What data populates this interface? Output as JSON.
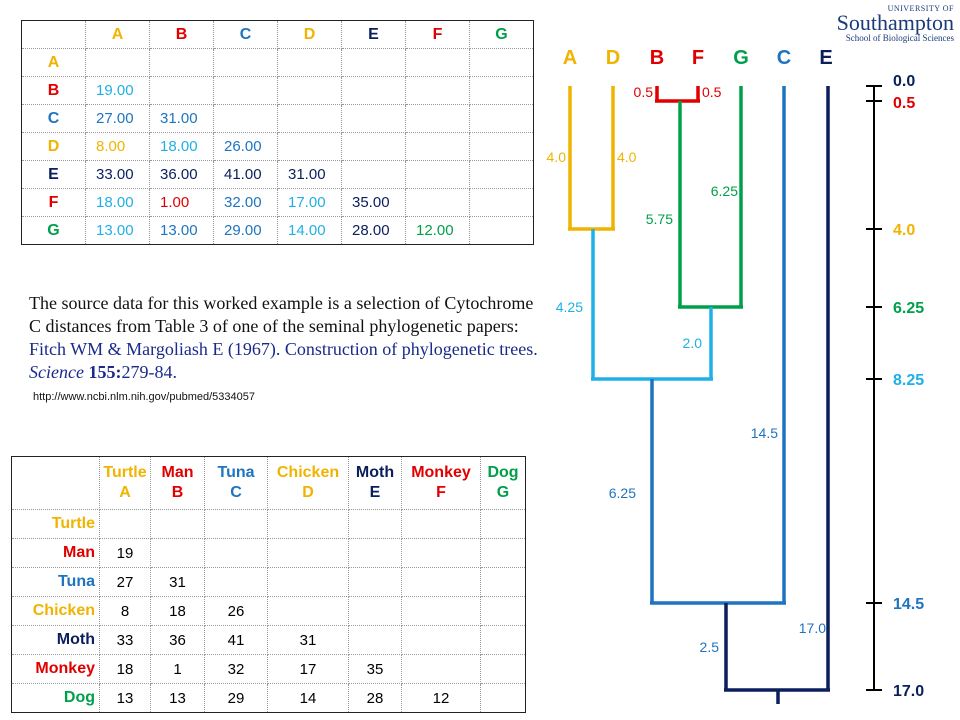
{
  "colors": {
    "A": "#f0b400",
    "B": "#e00000",
    "C": "#1e74c0",
    "D": "#f0b400",
    "E": "#0a1f5c",
    "F": "#e00000",
    "G": "#00a04a",
    "AD_branch": "#1fb0e8",
    "ADBFG_branch": "#1e74c0",
    "root_branch": "#0a1f5c"
  },
  "logo": {
    "line1": "UNIVERSITY OF",
    "line2": "Southampton",
    "line3": "School of Biological Sciences"
  },
  "matrix_letters": {
    "headers": [
      "A",
      "B",
      "C",
      "D",
      "E",
      "F",
      "G"
    ],
    "rows": [
      {
        "label": "A",
        "cells": []
      },
      {
        "label": "B",
        "cells": [
          "19.00"
        ]
      },
      {
        "label": "C",
        "cells": [
          "27.00",
          "31.00"
        ]
      },
      {
        "label": "D",
        "cells": [
          "8.00",
          "18.00",
          "26.00"
        ]
      },
      {
        "label": "E",
        "cells": [
          "33.00",
          "36.00",
          "41.00",
          "31.00"
        ]
      },
      {
        "label": "F",
        "cells": [
          "18.00",
          "1.00",
          "32.00",
          "17.00",
          "35.00"
        ]
      },
      {
        "label": "G",
        "cells": [
          "13.00",
          "13.00",
          "29.00",
          "14.00",
          "28.00",
          "12.00"
        ]
      }
    ]
  },
  "matrix_names": {
    "headers": [
      {
        "name": "Turtle",
        "letter": "A"
      },
      {
        "name": "Man",
        "letter": "B"
      },
      {
        "name": "Tuna",
        "letter": "C"
      },
      {
        "name": "Chicken",
        "letter": "D"
      },
      {
        "name": "Moth",
        "letter": "E"
      },
      {
        "name": "Monkey",
        "letter": "F"
      },
      {
        "name": "Dog",
        "letter": "G"
      }
    ],
    "rows": [
      {
        "label": "Turtle",
        "key": "A",
        "cells": []
      },
      {
        "label": "Man",
        "key": "B",
        "cells": [
          "19"
        ]
      },
      {
        "label": "Tuna",
        "key": "C",
        "cells": [
          "27",
          "31"
        ]
      },
      {
        "label": "Chicken",
        "key": "D",
        "cells": [
          "8",
          "18",
          "26"
        ]
      },
      {
        "label": "Moth",
        "key": "E",
        "cells": [
          "33",
          "36",
          "41",
          "31"
        ]
      },
      {
        "label": "Monkey",
        "key": "F",
        "cells": [
          "18",
          "1",
          "32",
          "17",
          "35"
        ]
      },
      {
        "label": "Dog",
        "key": "G",
        "cells": [
          "13",
          "13",
          "29",
          "14",
          "28",
          "12"
        ]
      }
    ]
  },
  "description": {
    "text": "The source data for this worked example is a selection of Cytochrome C distances from Table 3 of one of the seminal phylogenetic papers: ",
    "citation_plain": "Fitch WM & Margoliash E (1967). Construction of phylogenetic trees. ",
    "journal": "Science",
    "volume": "155:",
    "pages": "279-84.",
    "url": "http://www.ncbi.nlm.nih.gov/pubmed/5334057"
  },
  "tree": {
    "leaves": [
      "A",
      "D",
      "B",
      "F",
      "G",
      "C",
      "E"
    ],
    "branch_labels": {
      "BF_left": "0.5",
      "BF_right": "0.5",
      "A": "4.0",
      "D": "4.0",
      "F_to_FG": "5.75",
      "G": "6.25",
      "AD_to_node": "4.25",
      "FG_to_node": "2.0",
      "C": "14.5",
      "ADFG_to_node": "6.25",
      "E": "17.0",
      "to_root": "2.5"
    },
    "scale_ticks": [
      {
        "label": "0.0",
        "key": "E"
      },
      {
        "label": "0.5",
        "key": "B"
      },
      {
        "label": "4.0",
        "key": "A"
      },
      {
        "label": "6.25",
        "key": "G"
      },
      {
        "label": "8.25",
        "key": "AD_branch"
      },
      {
        "label": "14.5",
        "key": "ADBFG_branch"
      },
      {
        "label": "17.0",
        "key": "root_branch"
      }
    ]
  }
}
